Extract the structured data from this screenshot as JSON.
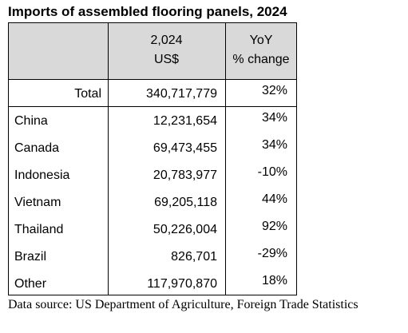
{
  "title": "Imports of assembled flooring panels, 2024",
  "chart_data": {
    "type": "table",
    "columns": [
      {
        "line1": "",
        "line2": ""
      },
      {
        "line1": "2,024",
        "line2": "US$"
      },
      {
        "line1": "YoY",
        "line2": "% change"
      }
    ],
    "total": {
      "label": "Total",
      "value": "340,717,779",
      "change": "32%"
    },
    "rows": [
      {
        "label": "China",
        "value": "12,231,654",
        "change": "34%"
      },
      {
        "label": "Canada",
        "value": "69,473,455",
        "change": "34%"
      },
      {
        "label": "Indonesia",
        "value": "20,783,977",
        "change": "-10%"
      },
      {
        "label": "Vietnam",
        "value": "69,205,118",
        "change": "44%"
      },
      {
        "label": "Thailand",
        "value": "50,226,004",
        "change": "92%"
      },
      {
        "label": "Brazil",
        "value": "826,701",
        "change": "-29%"
      },
      {
        "label": "Other",
        "value": "117,970,870",
        "change": "18%"
      }
    ],
    "header_shading": "#d9d9d9"
  },
  "source": "Data source: US Department of Agriculture, Foreign Trade Statistics"
}
